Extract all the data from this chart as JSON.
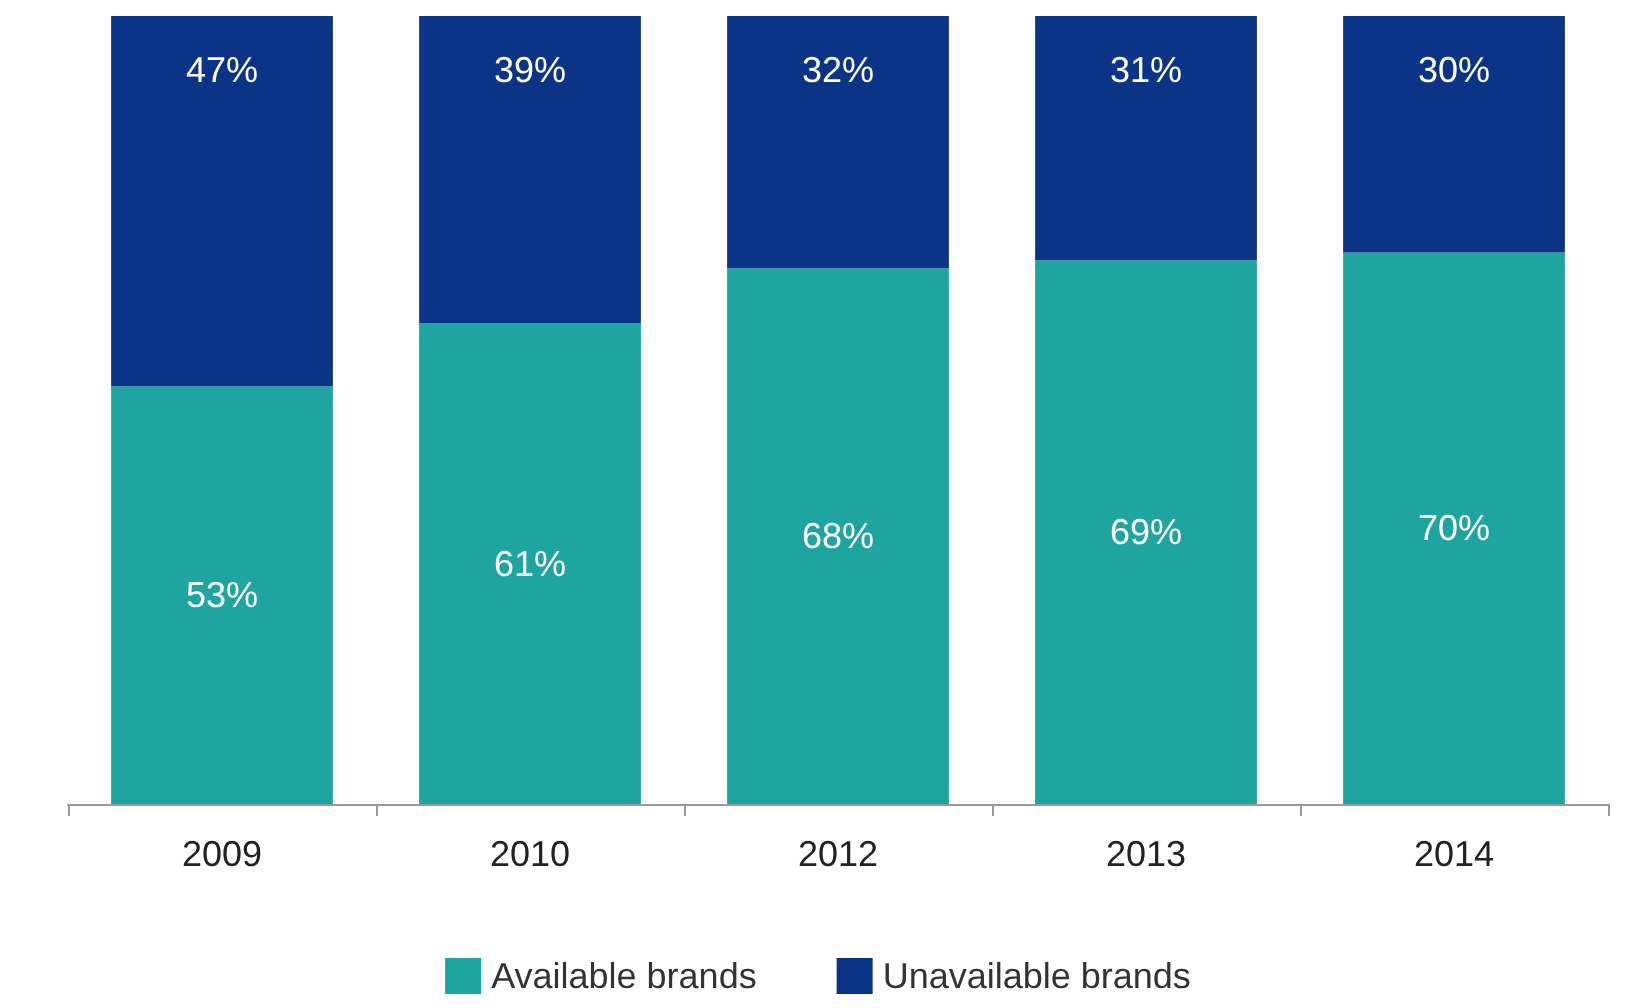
{
  "chart_data": {
    "type": "bar",
    "stacked": true,
    "categories": [
      "2009",
      "2010",
      "2012",
      "2013",
      "2014"
    ],
    "series": [
      {
        "name": "Available brands",
        "color": "#1fa5a0",
        "values": [
          53,
          61,
          68,
          69,
          70
        ],
        "value_labels": [
          "53%",
          "61%",
          "68%",
          "69%",
          "70%"
        ]
      },
      {
        "name": "Unavailable brands",
        "color": "#0b3487",
        "values": [
          47,
          39,
          32,
          31,
          30
        ],
        "value_labels": [
          "47%",
          "39%",
          "32%",
          "31%",
          "30%"
        ]
      }
    ],
    "legend": "bottom"
  }
}
